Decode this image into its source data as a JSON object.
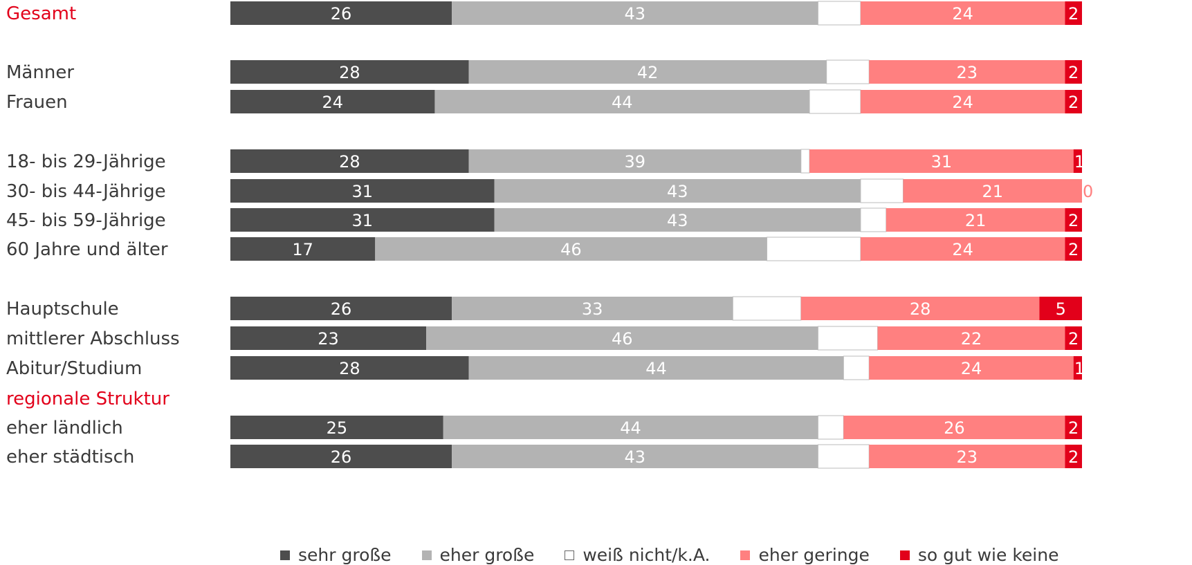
{
  "chart_data": {
    "type": "bar",
    "orientation": "horizontal",
    "stacked": true,
    "xlim": [
      0,
      100
    ],
    "categories": [
      "Gesamt",
      "Männer",
      "Frauen",
      "18- bis 29-Jährige",
      "30- bis 44-Jährige",
      "45- bis 59-Jährige",
      "60 Jahre und älter",
      "Hauptschule",
      "mittlerer Abschluss",
      "Abitur/Studium",
      "eher ländlich",
      "eher städtisch"
    ],
    "highlighted_categories": [
      "Gesamt"
    ],
    "group_headings": [
      {
        "text": "regionale Struktur",
        "before_category": "eher ländlich"
      }
    ],
    "series": [
      {
        "name": "sehr große",
        "color": "#4d4d4d",
        "label_color": "#ffffff",
        "values": [
          26,
          28,
          24,
          28,
          31,
          31,
          17,
          26,
          23,
          28,
          25,
          26
        ]
      },
      {
        "name": "eher große",
        "color": "#b3b3b3",
        "label_color": "#ffffff",
        "values": [
          43,
          42,
          44,
          39,
          43,
          43,
          46,
          33,
          46,
          44,
          44,
          43
        ]
      },
      {
        "name": "weiß nicht/k.A.",
        "color": "#ffffff",
        "label_color": null,
        "values": [
          5,
          5,
          6,
          1,
          5,
          3,
          11,
          8,
          7,
          3,
          3,
          6
        ]
      },
      {
        "name": "eher geringe",
        "color": "#ff8080",
        "label_color": "#ffffff",
        "values": [
          24,
          23,
          24,
          31,
          21,
          21,
          24,
          28,
          22,
          24,
          26,
          23
        ]
      },
      {
        "name": "so gut wie keine",
        "color": "#e2001a",
        "label_color": "#ffffff",
        "values": [
          2,
          2,
          2,
          1,
          0,
          2,
          2,
          5,
          2,
          1,
          2,
          2
        ]
      }
    ],
    "legend_position": "bottom",
    "grid": false
  },
  "colors": {
    "highlight_text": "#e2001a",
    "label_text": "#3a3a3a",
    "bar_outline": "#bbbbbb"
  }
}
